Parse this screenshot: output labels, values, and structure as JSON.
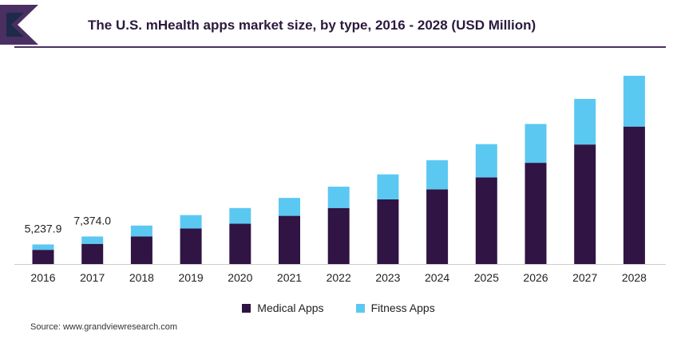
{
  "title": "The U.S. mHealth apps market size, by type, 2016 - 2028 (USD Million)",
  "source": "Source: www.grandviewresearch.com",
  "colors": {
    "accent": "#4a2f63",
    "medical": "#2f1444",
    "fitness": "#5bc8f2"
  },
  "chart_data": {
    "type": "bar",
    "stacked": true,
    "categories": [
      "2016",
      "2017",
      "2018",
      "2019",
      "2020",
      "2021",
      "2022",
      "2023",
      "2024",
      "2025",
      "2026",
      "2027",
      "2028"
    ],
    "series": [
      {
        "name": "Medical Apps",
        "values": [
          3800,
          5400,
          7400,
          9500,
          10800,
          12900,
          15000,
          17300,
          20000,
          23200,
          27100,
          32000,
          36800
        ]
      },
      {
        "name": "Fitness Apps",
        "values": [
          1437.9,
          1974.0,
          2900,
          3600,
          4200,
          4800,
          5700,
          6700,
          7800,
          8900,
          10400,
          12200,
          13600
        ]
      }
    ],
    "data_labels": [
      {
        "category": "2016",
        "text": "5,237.9"
      },
      {
        "category": "2017",
        "text": "7,374.0"
      }
    ],
    "ylim": [
      0,
      50400
    ],
    "grid": false,
    "legend": "bottom"
  }
}
